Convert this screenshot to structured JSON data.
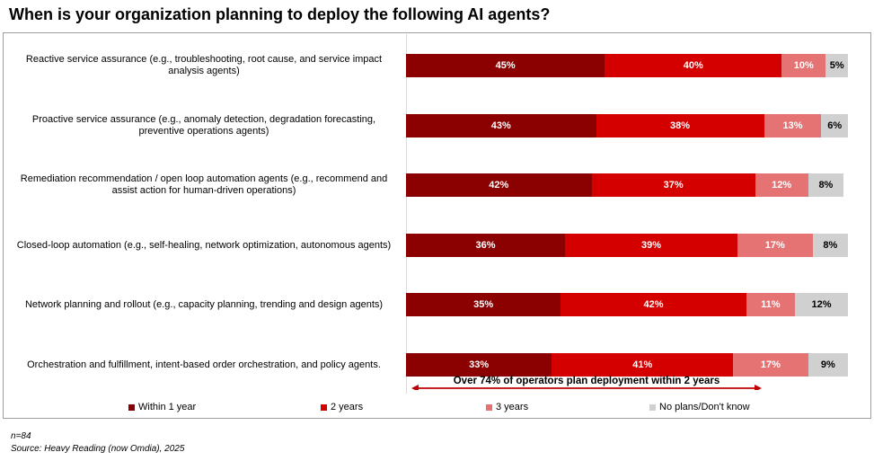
{
  "title": "When is your organization planning to deploy the following AI agents?",
  "chart_data": {
    "type": "bar",
    "orientation": "horizontal",
    "stacked": true,
    "percent_scale": [
      0,
      100
    ],
    "categories": [
      "Reactive service assurance (e.g., troubleshooting, root cause, and service impact analysis agents)",
      "Proactive service assurance (e.g., anomaly detection, degradation forecasting, preventive operations agents)",
      "Remediation recommendation / open loop automation agents (e.g., recommend and assist action for human-driven operations)",
      "Closed-loop automation (e.g., self-healing, network optimization, autonomous agents)",
      "Network planning and rollout (e.g., capacity planning, trending and design agents)",
      "Orchestration and fulfillment, intent-based order orchestration, and policy agents."
    ],
    "series": [
      {
        "name": "Within 1 year",
        "color": "#8b0000",
        "label_color": "#ffffff",
        "values": [
          45,
          43,
          42,
          36,
          35,
          33
        ]
      },
      {
        "name": "2 years",
        "color": "#d40000",
        "label_color": "#ffffff",
        "values": [
          40,
          38,
          37,
          39,
          42,
          41
        ]
      },
      {
        "name": "3 years",
        "color": "#e57373",
        "label_color": "#ffffff",
        "values": [
          10,
          13,
          12,
          17,
          11,
          17
        ]
      },
      {
        "name": "No plans/Don't know",
        "color": "#d0d0d0",
        "label_color": "#000000",
        "values": [
          5,
          6,
          8,
          8,
          12,
          9
        ]
      }
    ],
    "legend_position": "bottom",
    "annotation": "Over 74% of operators plan deployment within 2 years",
    "annotation_color": "#c00000"
  },
  "footnotes": {
    "n": "n=84",
    "source": "Source: Heavy Reading (now Omdia), 2025"
  }
}
